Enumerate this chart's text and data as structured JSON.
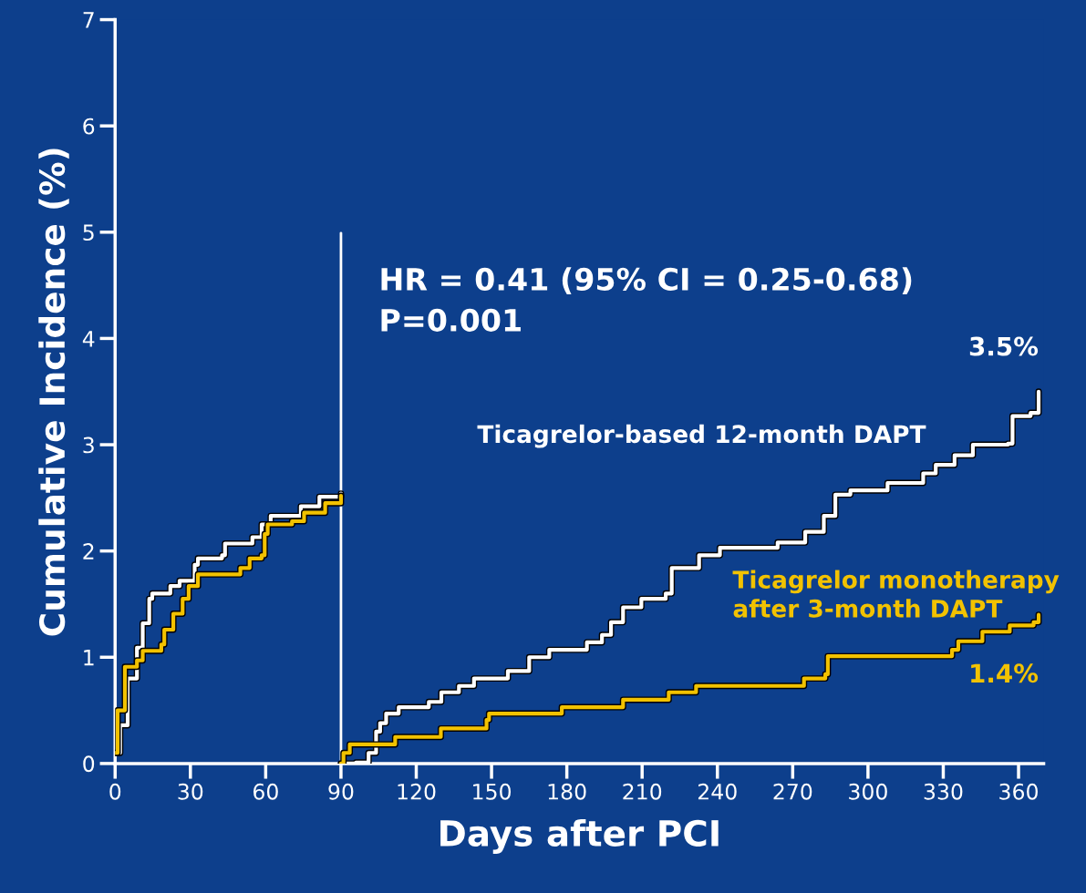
{
  "chart_data": {
    "type": "step",
    "xlabel": "Days after PCI",
    "ylabel": "Cumulative Incidence (%)",
    "xlim": [
      0,
      370
    ],
    "ylim": [
      0,
      7
    ],
    "xticks": [
      0,
      30,
      60,
      90,
      120,
      150,
      180,
      210,
      240,
      270,
      300,
      330,
      360
    ],
    "yticks": [
      0,
      1,
      2,
      3,
      4,
      5,
      6,
      7
    ],
    "grid": false,
    "legend": false,
    "series": [
      {
        "color": "#ffffff",
        "x": [
          0,
          2,
          5,
          8.7,
          11,
          13.6,
          14.8,
          22,
          25.7,
          31.7,
          33,
          42.6,
          43.8,
          54.7,
          58.4,
          62,
          74,
          81.4,
          90
        ],
        "values": [
          0.1,
          0.36,
          0.8,
          1.09,
          1.32,
          1.55,
          1.6,
          1.67,
          1.72,
          1.87,
          1.93,
          1.96,
          2.07,
          2.13,
          2.25,
          2.33,
          2.42,
          2.51,
          2.54
        ]
      },
      {
        "color": "#f2c200",
        "x": [
          0,
          1,
          3.9,
          8.7,
          11,
          18.4,
          19.6,
          23.2,
          26.9,
          29.3,
          33,
          49.9,
          53.6,
          58.4,
          59.6,
          60.8,
          70.5,
          75.3,
          83.7,
          90
        ],
        "values": [
          0.1,
          0.5,
          0.91,
          0.97,
          1.06,
          1.12,
          1.26,
          1.41,
          1.55,
          1.67,
          1.78,
          1.84,
          1.93,
          1.96,
          2.16,
          2.25,
          2.28,
          2.36,
          2.45,
          2.52
        ]
      },
      {
        "name": "Ticagrelor-based 12-month DAPT",
        "color": "#ffffff",
        "x": [
          90,
          96,
          101,
          104,
          105.6,
          108,
          113,
          125,
          130,
          137,
          143,
          156.5,
          165,
          173,
          188,
          194,
          197.6,
          202.4,
          209.7,
          219.4,
          221.8,
          232.7,
          241,
          264,
          275,
          282.4,
          287,
          293,
          307.8,
          322,
          327,
          334.5,
          341.8,
          355.8,
          357.6,
          364.8,
          368
        ],
        "values": [
          0,
          0.01,
          0.1,
          0.3,
          0.38,
          0.47,
          0.53,
          0.58,
          0.67,
          0.73,
          0.8,
          0.87,
          1.0,
          1.07,
          1.14,
          1.21,
          1.33,
          1.47,
          1.55,
          1.6,
          1.84,
          1.96,
          2.03,
          2.08,
          2.18,
          2.33,
          2.53,
          2.57,
          2.64,
          2.73,
          2.81,
          2.9,
          3.0,
          3.01,
          3.27,
          3.3,
          3.5
        ]
      },
      {
        "name": "Ticagrelor monotherapy\nafter 3-month DAPT",
        "color": "#f2c200",
        "x": [
          90,
          91,
          93.5,
          111.6,
          129.8,
          148,
          149,
          178,
          202.4,
          220.6,
          231.5,
          274.5,
          283,
          284,
          333.5,
          336,
          345.6,
          356.5,
          366,
          368
        ],
        "values": [
          0,
          0.1,
          0.18,
          0.25,
          0.33,
          0.41,
          0.47,
          0.53,
          0.6,
          0.67,
          0.73,
          0.8,
          0.84,
          1.01,
          1.07,
          1.15,
          1.24,
          1.3,
          1.33,
          1.4
        ]
      }
    ],
    "ref_lines": [
      {
        "axis": "x",
        "value": 90,
        "color": "#ffffff"
      }
    ],
    "annotations": [
      "HR = 0.41 (95% CI = 0.25-0.68)\nP=0.001",
      {
        "text": "3.5%",
        "x": 368,
        "y": 3.5
      },
      {
        "text": "1.4%",
        "x": 368,
        "y": 1.4
      }
    ]
  }
}
